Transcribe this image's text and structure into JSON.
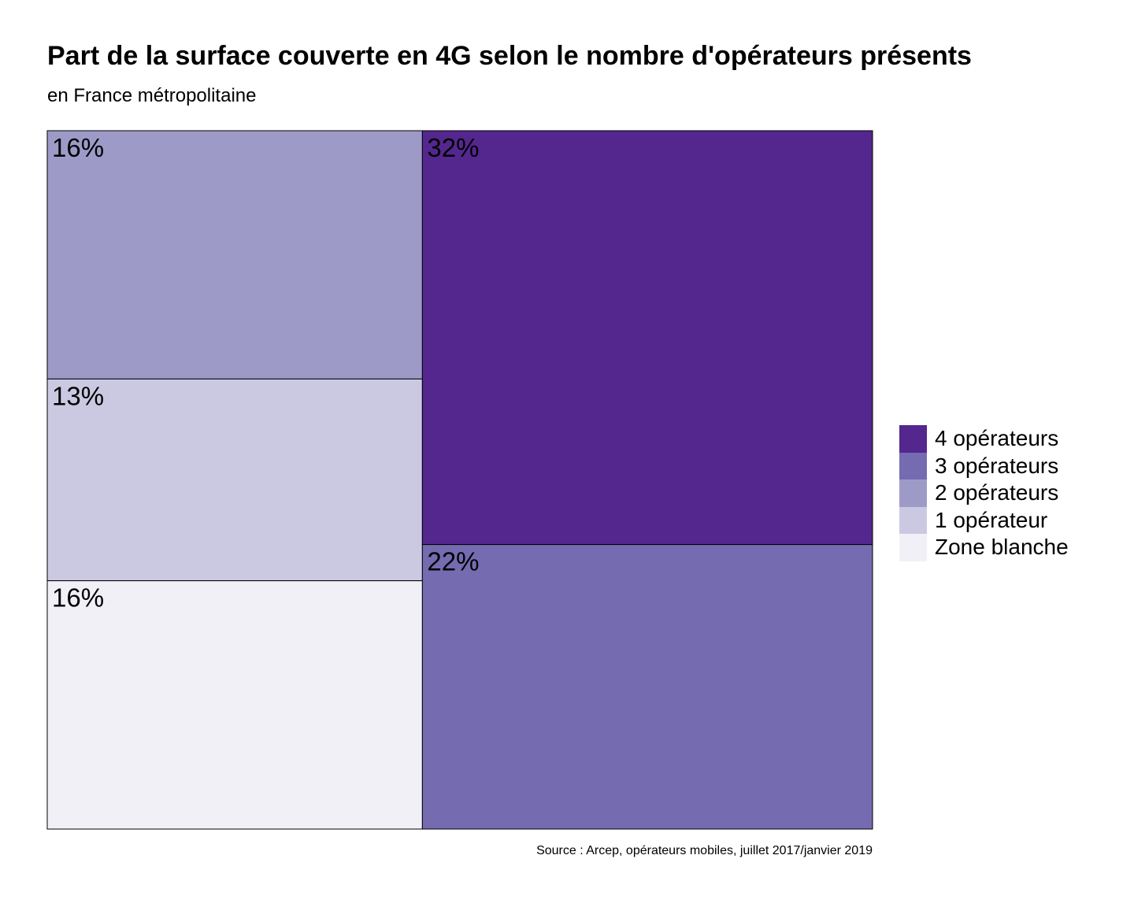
{
  "chart_data": {
    "type": "treemap",
    "title": "Part de la surface couverte en 4G selon le nombre d'opérateurs présents",
    "subtitle": "en France métropolitaine",
    "source": "Source : Arcep, opérateurs mobiles, juillet 2017/janvier 2019",
    "legend_position": "right",
    "series": [
      {
        "name": "4 opérateurs",
        "value": 32,
        "label": "32%",
        "color": "#54278f"
      },
      {
        "name": "3 opérateurs",
        "value": 22,
        "label": "22%",
        "color": "#756bb1"
      },
      {
        "name": "2 opérateurs",
        "value": 16,
        "label": "16%",
        "color": "#9e9ac8"
      },
      {
        "name": "1 opérateur",
        "value": 13,
        "label": "13%",
        "color": "#cbc9e2"
      },
      {
        "name": "Zone blanche",
        "value": 16,
        "label": "16%",
        "color": "#f2f0f7"
      }
    ]
  }
}
